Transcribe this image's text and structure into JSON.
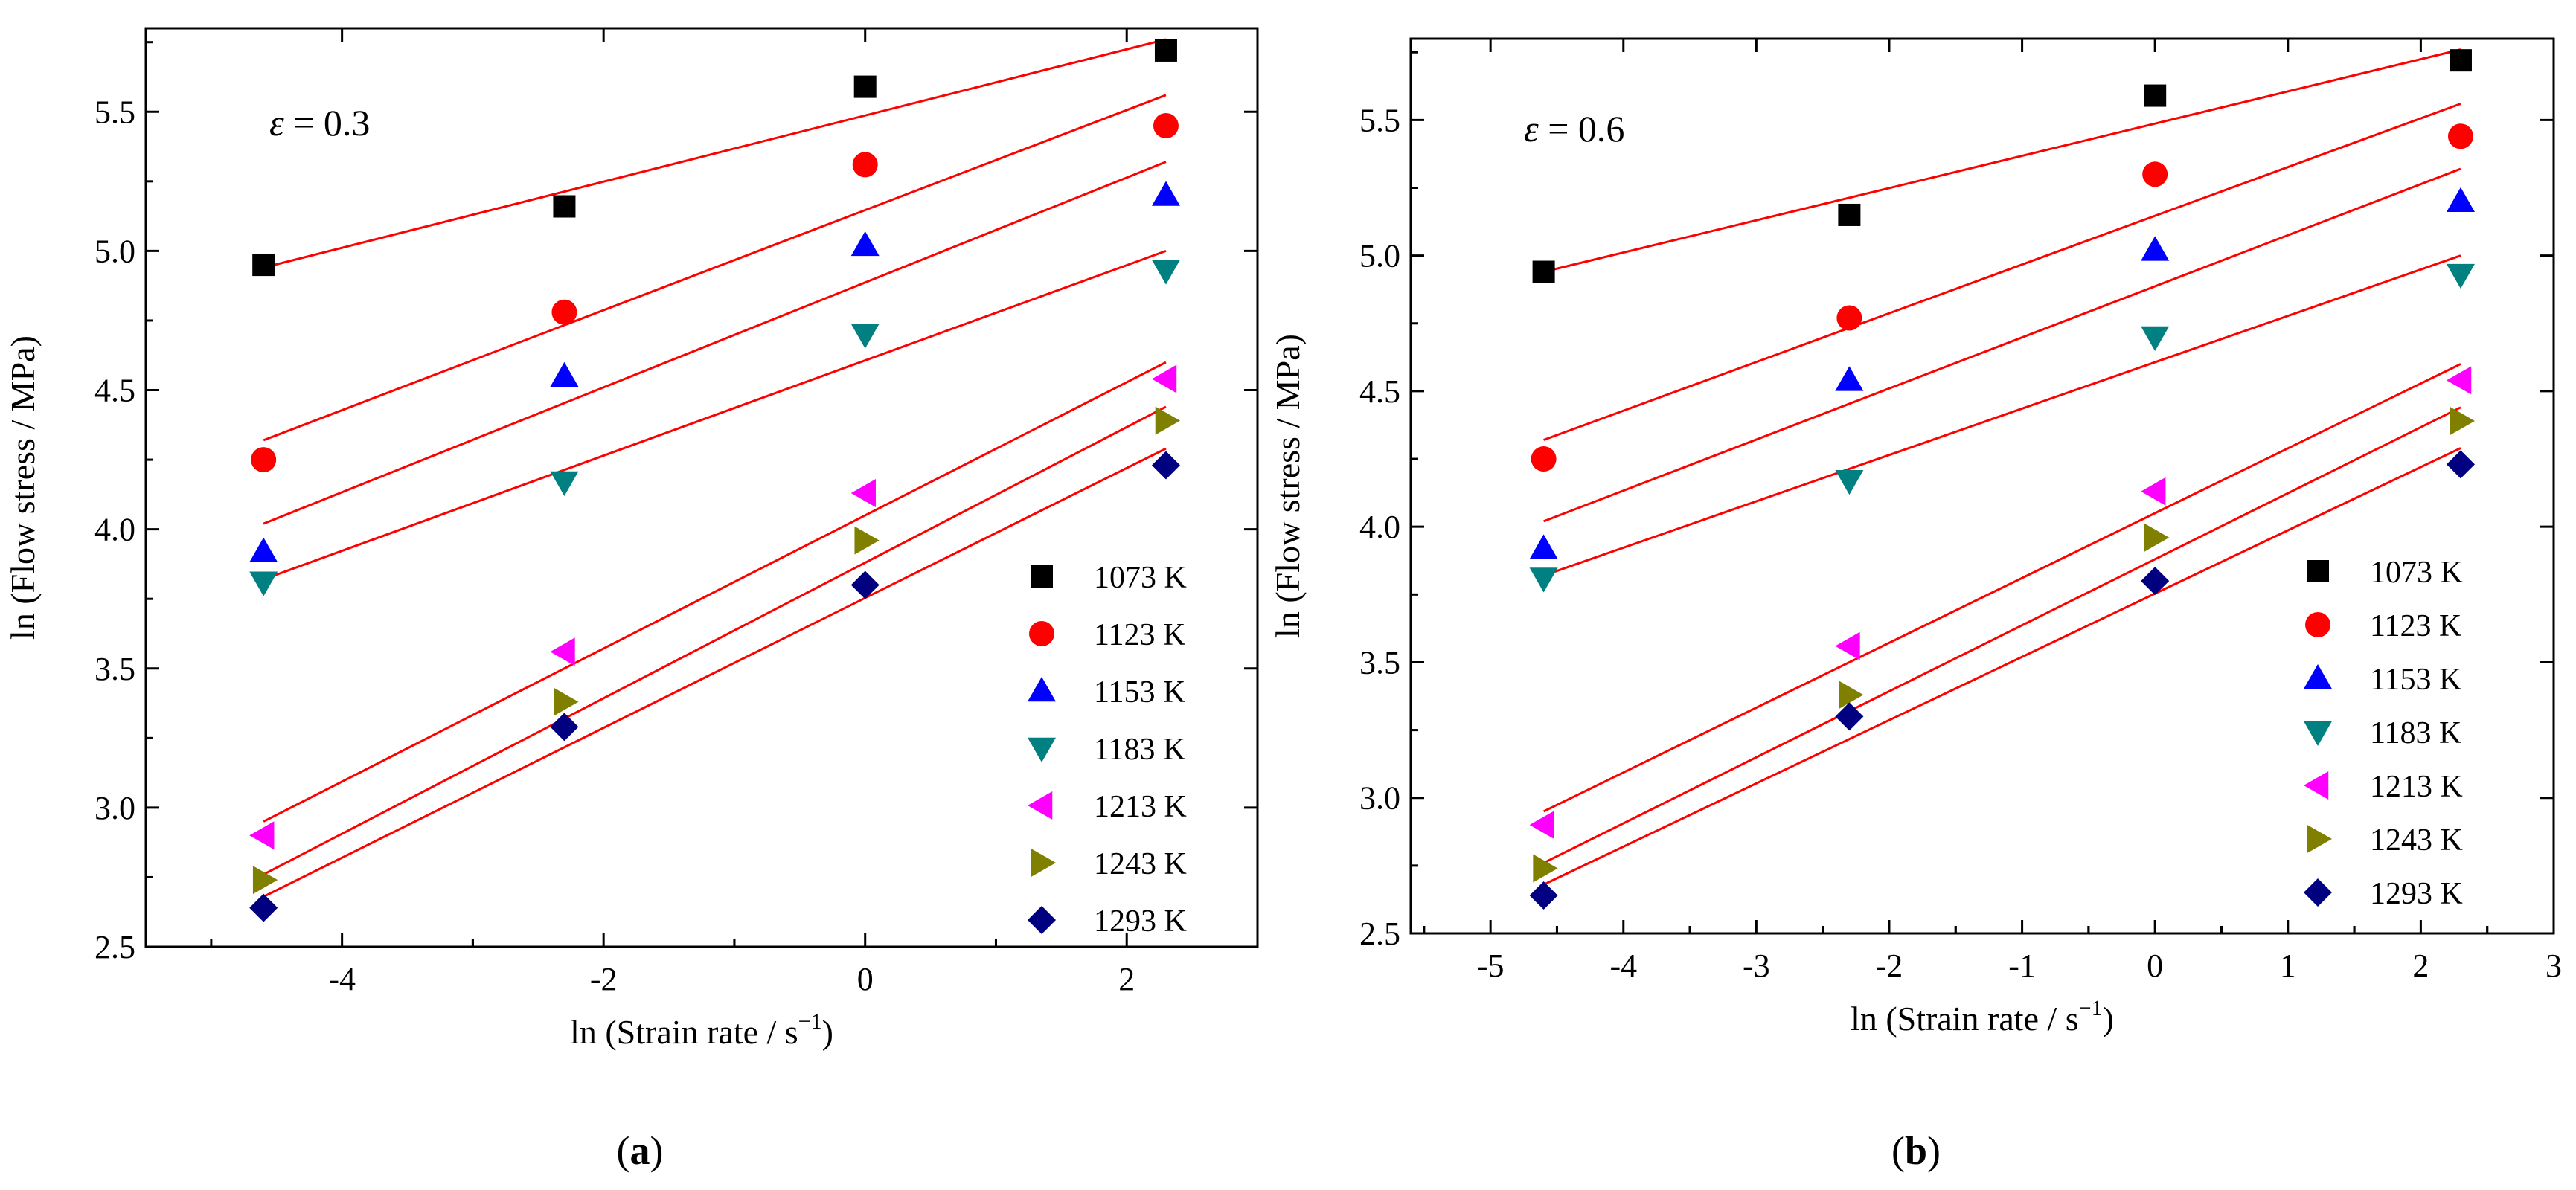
{
  "chart_data": [
    {
      "id": "a",
      "type": "scatter",
      "panel_label": "a",
      "annotation": {
        "symbol": "ε",
        "text": " = 0.3"
      },
      "xlabel": {
        "prefix": "ln (Strain rate / s",
        "sup": "−1",
        "suffix": ")"
      },
      "ylabel": "ln (Flow stress / MPa)",
      "xlim": [
        -5.5,
        3.0
      ],
      "ylim": [
        2.5,
        5.8
      ],
      "xticks": [
        -4,
        -2,
        0,
        2
      ],
      "xtick_labels": [
        "-4",
        "-2",
        "0",
        "2"
      ],
      "yticks": [
        2.5,
        3.0,
        3.5,
        4.0,
        4.5,
        5.0,
        5.5
      ],
      "ytick_labels": [
        "2.5",
        "3.0",
        "3.5",
        "4.0",
        "4.5",
        "5.0",
        "5.5"
      ],
      "x": [
        -4.6,
        -2.3,
        0.0,
        2.3
      ],
      "legend_position": "lower-right",
      "series": [
        {
          "name": "1073 K",
          "marker": "square",
          "color": "#000000",
          "values": [
            4.95,
            5.16,
            5.59,
            5.72
          ],
          "fit": [
            4.94,
            5.76
          ]
        },
        {
          "name": "1123 K",
          "marker": "circle",
          "color": "#ff0000",
          "values": [
            4.25,
            4.78,
            5.31,
            5.45
          ],
          "fit": [
            4.32,
            5.56
          ]
        },
        {
          "name": "1153 K",
          "marker": "triangle-up",
          "color": "#0000ff",
          "values": [
            3.92,
            4.55,
            5.02,
            5.2
          ],
          "fit": [
            4.02,
            5.32
          ]
        },
        {
          "name": "1183 K",
          "marker": "triangle-down",
          "color": "#008080",
          "values": [
            3.81,
            4.17,
            4.7,
            4.93
          ],
          "fit": [
            3.82,
            5.0
          ]
        },
        {
          "name": "1213 K",
          "marker": "triangle-left",
          "color": "#ff00ff",
          "values": [
            2.9,
            3.56,
            4.13,
            4.54
          ],
          "fit": [
            2.95,
            4.6
          ]
        },
        {
          "name": "1243 K",
          "marker": "triangle-right",
          "color": "#808000",
          "values": [
            2.74,
            3.38,
            3.96,
            4.39
          ],
          "fit": [
            2.76,
            4.44
          ]
        },
        {
          "name": "1293 K",
          "marker": "diamond",
          "color": "#000080",
          "values": [
            2.64,
            3.29,
            3.8,
            4.23
          ],
          "fit": [
            2.68,
            4.29
          ]
        }
      ]
    },
    {
      "id": "b",
      "type": "scatter",
      "panel_label": "b",
      "annotation": {
        "symbol": "ε",
        "text": " = 0.6"
      },
      "xlabel": {
        "prefix": "ln (Strain rate / s",
        "sup": "−1",
        "suffix": ")"
      },
      "ylabel": "ln (Flow stress / MPa)",
      "xlim": [
        -5.6,
        3.0
      ],
      "ylim": [
        2.5,
        5.8
      ],
      "xticks": [
        -5,
        -4,
        -3,
        -2,
        -1,
        0,
        1,
        2,
        3
      ],
      "xtick_labels": [
        "-5",
        "-4",
        "-3",
        "-2",
        "-1",
        "0",
        "1",
        "2",
        "3"
      ],
      "yticks": [
        2.5,
        3.0,
        3.5,
        4.0,
        4.5,
        5.0,
        5.5
      ],
      "ytick_labels": [
        "2.5",
        "3.0",
        "3.5",
        "4.0",
        "4.5",
        "5.0",
        "5.5"
      ],
      "x": [
        -4.6,
        -2.3,
        0.0,
        2.3
      ],
      "legend_position": "lower-right",
      "series": [
        {
          "name": "1073 K",
          "marker": "square",
          "color": "#000000",
          "values": [
            4.94,
            5.15,
            5.59,
            5.72
          ],
          "fit": [
            4.94,
            5.76
          ]
        },
        {
          "name": "1123 K",
          "marker": "circle",
          "color": "#ff0000",
          "values": [
            4.25,
            4.77,
            5.3,
            5.44
          ],
          "fit": [
            4.32,
            5.56
          ]
        },
        {
          "name": "1153 K",
          "marker": "triangle-up",
          "color": "#0000ff",
          "values": [
            3.92,
            4.54,
            5.02,
            5.2
          ],
          "fit": [
            4.02,
            5.32
          ]
        },
        {
          "name": "1183 K",
          "marker": "triangle-down",
          "color": "#008080",
          "values": [
            3.81,
            4.17,
            4.7,
            4.93
          ],
          "fit": [
            3.82,
            5.0
          ]
        },
        {
          "name": "1213 K",
          "marker": "triangle-left",
          "color": "#ff00ff",
          "values": [
            2.9,
            3.56,
            4.13,
            4.54
          ],
          "fit": [
            2.95,
            4.6
          ]
        },
        {
          "name": "1243 K",
          "marker": "triangle-right",
          "color": "#808000",
          "values": [
            2.74,
            3.38,
            3.96,
            4.39
          ],
          "fit": [
            2.76,
            4.44
          ]
        },
        {
          "name": "1293 K",
          "marker": "diamond",
          "color": "#000080",
          "values": [
            2.64,
            3.3,
            3.8,
            4.23
          ],
          "fit": [
            2.68,
            4.29
          ]
        }
      ]
    }
  ],
  "fit_line_color": "#ff0000"
}
